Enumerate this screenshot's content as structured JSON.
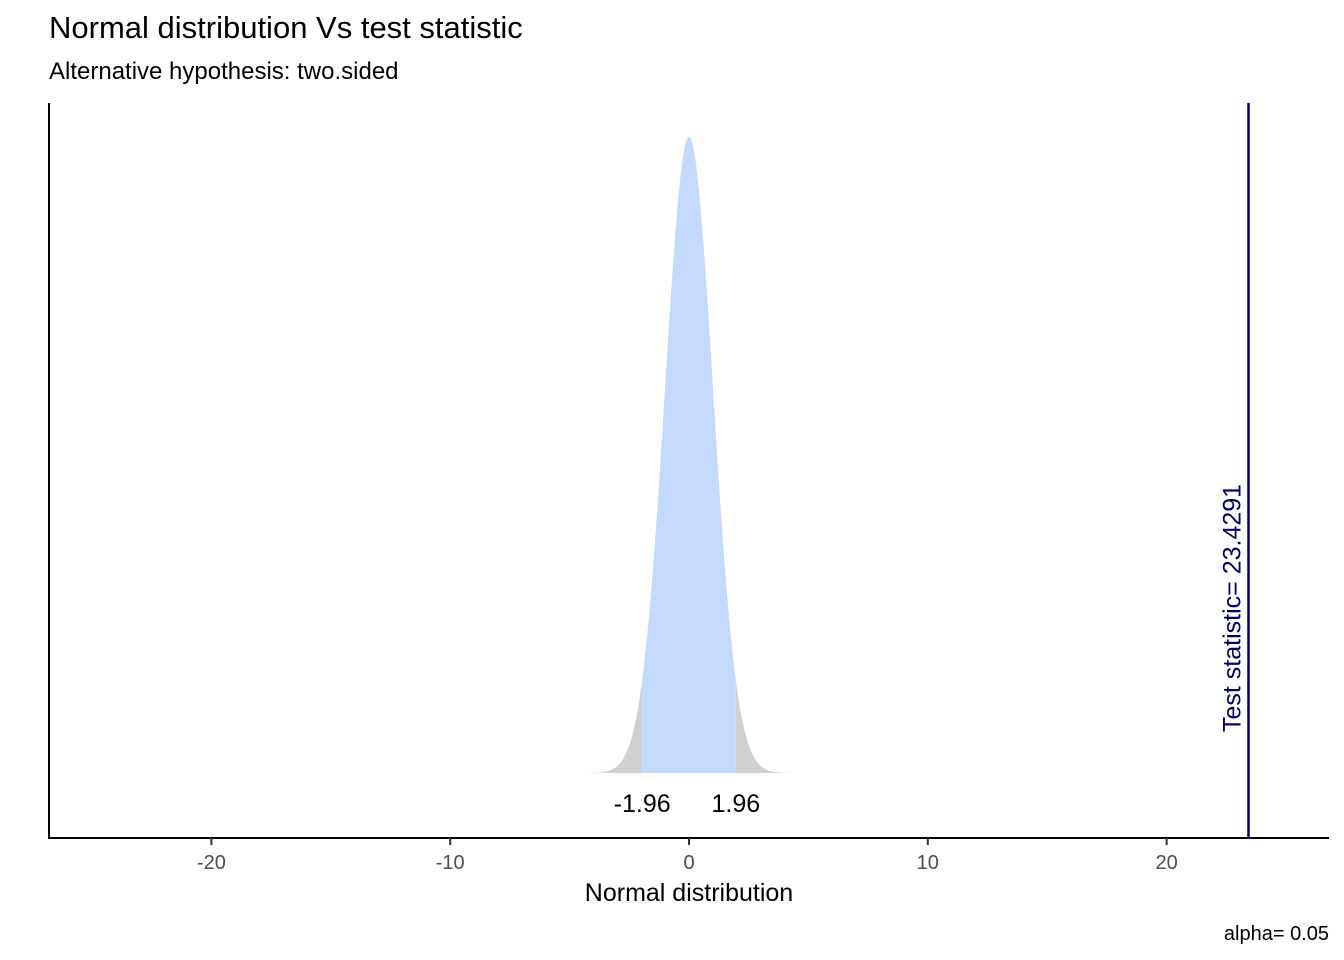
{
  "title": "Normal distribution Vs test statistic",
  "subtitle": "Alternative hypothesis: two.sided",
  "caption": "alpha= 0.05",
  "colors": {
    "acceptance_region": "#c3dafe",
    "rejection_region": "#d0d0d0",
    "test_statistic_line": "#000066",
    "axis": "#000000",
    "tick_label": "#4d4d4d"
  },
  "chart_data": {
    "type": "area",
    "title": "Normal distribution Vs test statistic",
    "subtitle": "Alternative hypothesis: two.sided",
    "xlabel": "Normal distribution",
    "ylabel": "",
    "xlim": [
      -26.8,
      26.8
    ],
    "x_ticks": [
      -20,
      -10,
      0,
      10,
      20
    ],
    "x_tick_labels": [
      "-20",
      "-10",
      "0",
      "10",
      "20"
    ],
    "distribution": {
      "name": "standard normal",
      "mean": 0,
      "sd": 1,
      "x_range": [
        -4.5,
        4.5
      ]
    },
    "critical_values": [
      -1.96,
      1.96
    ],
    "critical_value_labels": [
      "-1.96",
      "1.96"
    ],
    "test_statistic": 23.4291,
    "test_statistic_label": "Test statistic= 23.4291",
    "alpha": 0.05,
    "grid": false,
    "legend": "none"
  }
}
